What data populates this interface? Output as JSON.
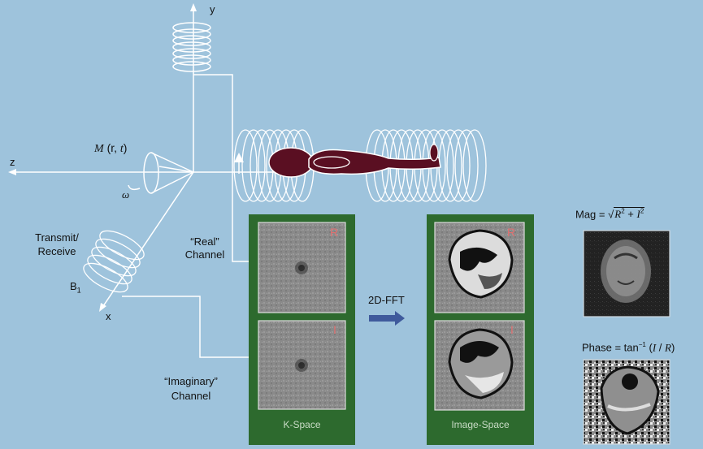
{
  "axes": {
    "x": "x",
    "y": "y",
    "z": "z"
  },
  "magnetization": {
    "label_M": "M",
    "label_args_open": "(r, ",
    "label_t": "t",
    "label_args_close": ")",
    "omega": "ω"
  },
  "coil": {
    "label_line1": "Transmit/",
    "label_line2": "Receive",
    "b1_main": "B",
    "b1_sub": "1"
  },
  "channels": {
    "real_line1": "“Real”",
    "real_line2": "Channel",
    "imag_line1": "“Imaginary”",
    "imag_line2": "Channel"
  },
  "kspace": {
    "label": "K-Space",
    "r_tag": "R",
    "i_tag": "I"
  },
  "imagespace": {
    "label": "Image-Space",
    "r_tag": "R",
    "i_tag": "I"
  },
  "transform": {
    "label": "2D-FFT"
  },
  "magnitude": {
    "prefix": "Mag = ",
    "r": "R",
    "plus": " + ",
    "i": "I",
    "exp": "2"
  },
  "phase": {
    "prefix": "Phase = tan",
    "exp": "−1",
    "open": " (",
    "i": "I",
    "slash": " / ",
    "r": "R",
    "close": ")"
  },
  "colors": {
    "background": "#9ec3dc",
    "panel": "#2d6a2e",
    "subject": "#5a0f22",
    "lines": "#ffffff",
    "arrow": "#3f5a9c"
  }
}
